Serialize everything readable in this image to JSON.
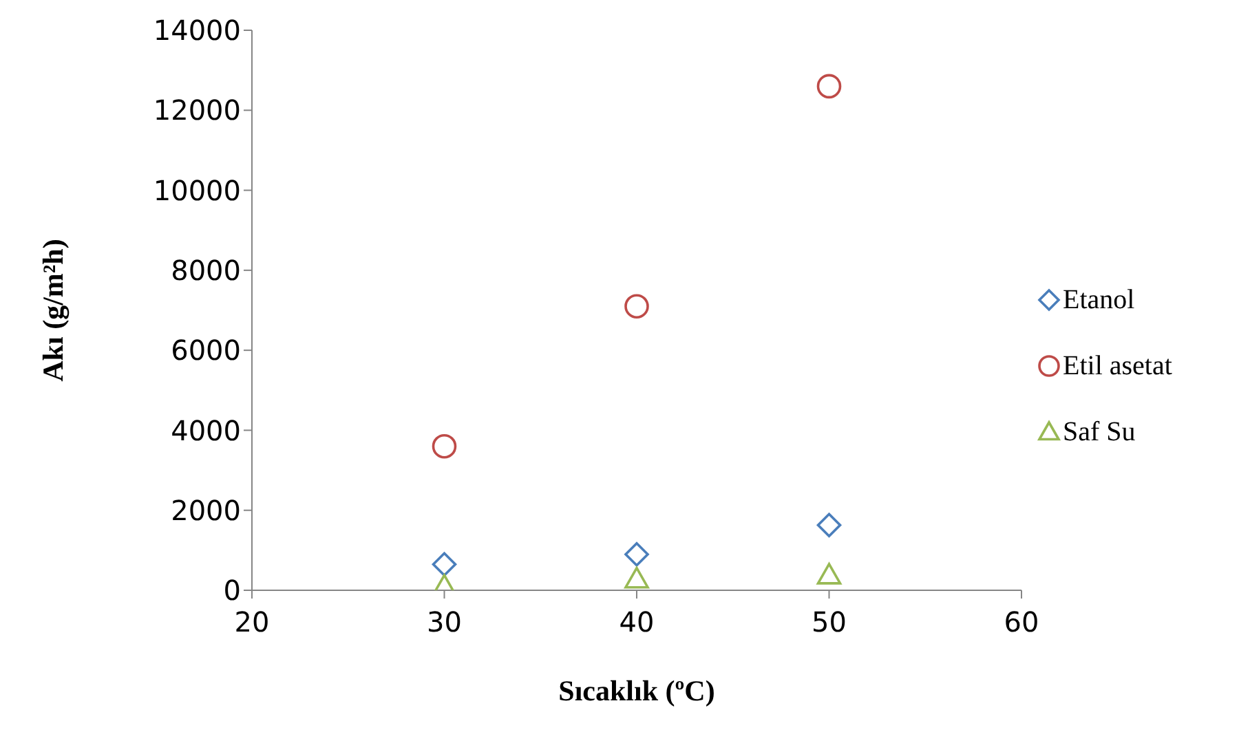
{
  "chart_data": {
    "type": "scatter",
    "xlabel": "Sıcaklık (ºC)",
    "ylabel": "Akı (g/m²h)",
    "x": [
      30,
      40,
      50
    ],
    "series": [
      {
        "name": "Etanol",
        "color": "#4a7ebb",
        "marker": "diamond",
        "values": [
          650,
          900,
          1630
        ]
      },
      {
        "name": "Etil asetat",
        "color": "#be4b48",
        "marker": "circle",
        "values": [
          3600,
          7100,
          12600
        ]
      },
      {
        "name": "Saf Su",
        "color": "#98b954",
        "marker": "triangle",
        "values": [
          100,
          280,
          380
        ]
      }
    ],
    "xlim": [
      20,
      60
    ],
    "xticks": [
      20,
      30,
      40,
      50,
      60
    ],
    "ylim": [
      0,
      14000
    ],
    "yticks": [
      0,
      2000,
      4000,
      6000,
      8000,
      10000,
      12000,
      14000
    ],
    "grid": false,
    "legend": "right"
  }
}
